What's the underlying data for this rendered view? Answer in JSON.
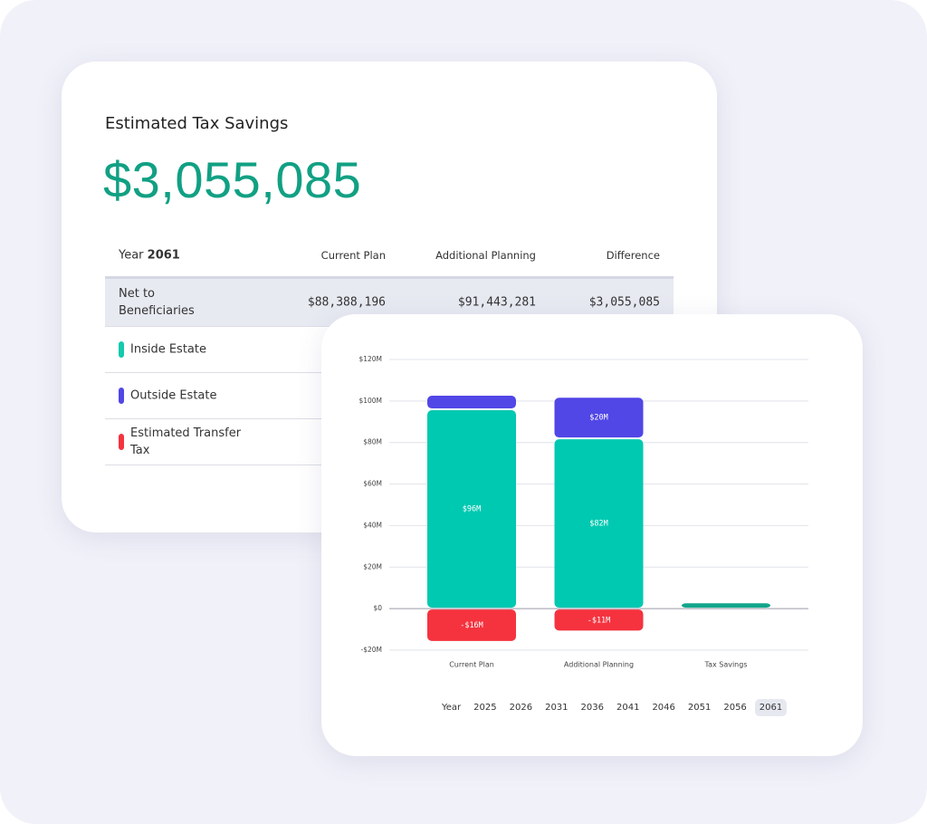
{
  "card": {
    "title": "Estimated Tax Savings",
    "amount": "$3,055,085"
  },
  "table": {
    "year_label": "Year",
    "year": "2061",
    "columns": [
      "Current Plan",
      "Additional Planning",
      "Difference"
    ],
    "rows": [
      {
        "label": "Net to Beneficiaries",
        "cells": [
          "$88,388,196",
          "$91,443,281",
          "$3,055,085"
        ]
      },
      {
        "label": "Inside Estate",
        "color": "#14c9ad"
      },
      {
        "label": "Outside Estate",
        "color": "#5146e6"
      },
      {
        "label": "Estimated Transfer Tax",
        "color": "#f5333f"
      }
    ]
  },
  "chart_data": {
    "type": "stacked-bar",
    "categories": [
      "Current Plan",
      "Additional Planning",
      "Tax Savings"
    ],
    "series": [
      {
        "color": "#00c9b1",
        "values": [
          96,
          82,
          null
        ],
        "value_labels": [
          "$96M",
          "$82M",
          null
        ]
      },
      {
        "color": "#5146e6",
        "values": [
          7,
          20,
          null
        ],
        "value_labels": [
          null,
          "$20M",
          null
        ]
      },
      {
        "color": "#f5333f",
        "values": [
          -16,
          -11,
          null
        ],
        "value_labels": [
          "-$16M",
          "-$11M",
          null
        ]
      },
      {
        "color": "#12a58b",
        "values": [
          null,
          null,
          3
        ],
        "value_labels": [
          null,
          null,
          null
        ]
      }
    ],
    "ylim": [
      -20,
      120
    ],
    "yticks": [
      {
        "value": -20,
        "label": "-$20M"
      },
      {
        "value": 0,
        "label": "$0"
      },
      {
        "value": 20,
        "label": "$20M"
      },
      {
        "value": 40,
        "label": "$40M"
      },
      {
        "value": 60,
        "label": "$60M"
      },
      {
        "value": 80,
        "label": "$80M"
      },
      {
        "value": 100,
        "label": "$100M"
      },
      {
        "value": 120,
        "label": "$120M"
      }
    ],
    "grid": true
  },
  "year_selector": {
    "label": "Year",
    "options": [
      "2025",
      "2026",
      "2031",
      "2036",
      "2041",
      "2046",
      "2051",
      "2056",
      "2061"
    ],
    "selected": "2061"
  }
}
